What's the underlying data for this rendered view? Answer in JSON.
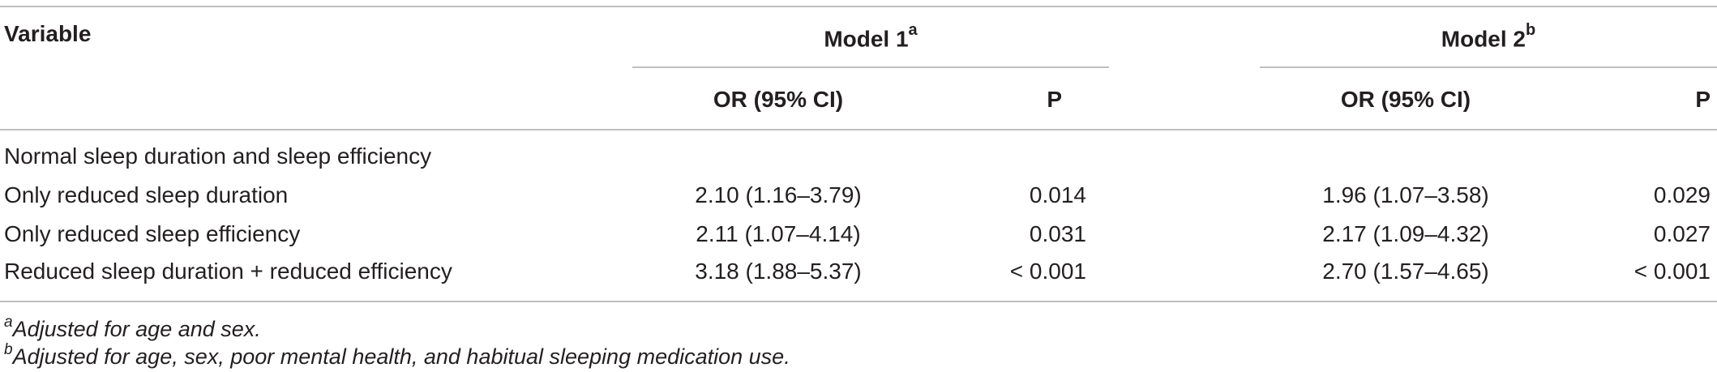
{
  "table": {
    "header": {
      "variable": "Variable",
      "model1": "Model 1",
      "model1_sup": "a",
      "model2": "Model 2",
      "model2_sup": "b",
      "or_label": "OR (95% CI)",
      "p_label": "P"
    },
    "rows": [
      {
        "variable": "Normal sleep duration and sleep efficiency",
        "m1_or": "",
        "m1_p": "",
        "m2_or": "",
        "m2_p": ""
      },
      {
        "variable": "Only reduced sleep duration",
        "m1_or": "2.10 (1.16–3.79)",
        "m1_p": "0.014",
        "m2_or": "1.96 (1.07–3.58)",
        "m2_p": "0.029"
      },
      {
        "variable": "Only reduced sleep efficiency",
        "m1_or": "2.11 (1.07–4.14)",
        "m1_p": "0.031",
        "m2_or": "2.17 (1.09–4.32)",
        "m2_p": "0.027"
      },
      {
        "variable": "Reduced sleep duration + reduced efficiency",
        "m1_or": "3.18 (1.88–5.37)",
        "m1_p": "< 0.001",
        "m2_or": "2.70 (1.57–4.65)",
        "m2_p": "< 0.001"
      }
    ],
    "footnotes": [
      {
        "mark": "a",
        "text": "Adjusted for age and sex."
      },
      {
        "mark": "b",
        "text": "Adjusted for age, sex, poor mental health, and habitual sleeping medication use."
      }
    ]
  }
}
